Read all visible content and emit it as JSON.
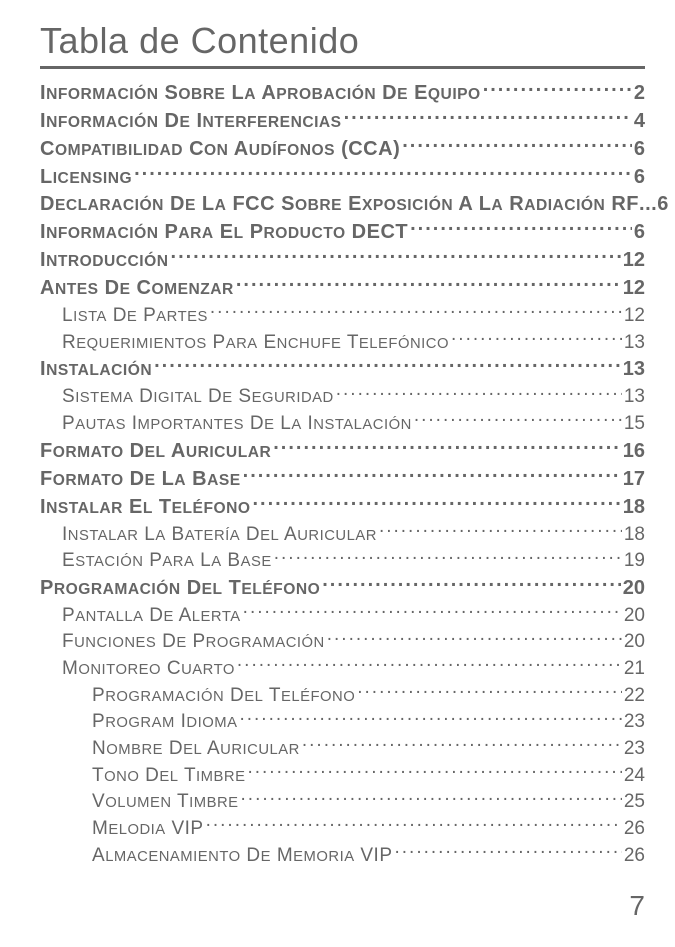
{
  "title": "Tabla de Contenido",
  "page_number": "7",
  "colors": {
    "text": "#666666",
    "background": "#ffffff",
    "rule": "#666666"
  },
  "fonts": {
    "title_size": 36,
    "l0_size": 20,
    "l1_size": 19,
    "l2_size": 19
  },
  "entries": [
    {
      "label": "Información Sobre la Aprobación de Equipo",
      "page": "2",
      "level": 0,
      "bold": true
    },
    {
      "label": "Información de Interferencias",
      "page": "4",
      "level": 0,
      "bold": true
    },
    {
      "label": "Compatibilidad con Audífonos (CCA)",
      "page": "6",
      "level": 0,
      "bold": true
    },
    {
      "label": "Licensing",
      "page": "6",
      "level": 0,
      "bold": true
    },
    {
      "label": "Declaración de la FCC sobre Exposición a la Radiación RF",
      "page": "6",
      "level": 0,
      "bold": true,
      "nodots": true
    },
    {
      "label": "Información para el Producto DECT",
      "page": "6",
      "level": 0,
      "bold": true
    },
    {
      "label": "Introducción",
      "page": "12",
      "level": 0,
      "bold": true
    },
    {
      "label": "Antes de Comenzar",
      "page": "12",
      "level": 0,
      "bold": true
    },
    {
      "label": "Lista de Partes",
      "page": "12",
      "level": 1,
      "bold": false
    },
    {
      "label": "Requerimientos Para Enchufe Telefónico",
      "page": "13",
      "level": 1,
      "bold": false
    },
    {
      "label": "Instalación ",
      "page": "13",
      "level": 0,
      "bold": true
    },
    {
      "label": "Sistema Digital de Seguridad",
      "page": "13",
      "level": 1,
      "bold": false
    },
    {
      "label": "Pautas Importantes de la Instalación",
      "page": "15",
      "level": 1,
      "bold": false
    },
    {
      "label": "Formato del Auricular",
      "page": "16",
      "level": 0,
      "bold": true
    },
    {
      "label": "Formato de la Base",
      "page": "17",
      "level": 0,
      "bold": true
    },
    {
      "label": "Instalar el Teléfono",
      "page": "18",
      "level": 0,
      "bold": true
    },
    {
      "label": "Instalar la Batería del Auricular",
      "page": "18",
      "level": 1,
      "bold": false
    },
    {
      "label": "Estación para la Base",
      "page": "19",
      "level": 1,
      "bold": false
    },
    {
      "label": "Programación del Teléfono",
      "page": "20",
      "level": 0,
      "bold": true
    },
    {
      "label": "Pantalla de Alerta",
      "page": "20",
      "level": 1,
      "bold": false
    },
    {
      "label": "Funciones de Programación",
      "page": "20",
      "level": 1,
      "bold": false
    },
    {
      "label": "Monitoreo Cuarto",
      "page": "21",
      "level": 1,
      "bold": false
    },
    {
      "label": "Programación del Teléfono",
      "page": "22",
      "level": 2,
      "bold": false
    },
    {
      "label": "Program Idioma",
      "page": "23",
      "level": 2,
      "bold": false
    },
    {
      "label": "Nombre del Auricular",
      "page": "23",
      "level": 2,
      "bold": false
    },
    {
      "label": "Tono del Timbre",
      "page": "24",
      "level": 2,
      "bold": false
    },
    {
      "label": "Volumen Timbre",
      "page": "25",
      "level": 2,
      "bold": false
    },
    {
      "label": "Melodia VIP",
      "page": "26",
      "level": 2,
      "bold": false
    },
    {
      "label": "Almacenamiento de Memoria VIP ",
      "page": "26",
      "level": 2,
      "bold": false
    }
  ]
}
